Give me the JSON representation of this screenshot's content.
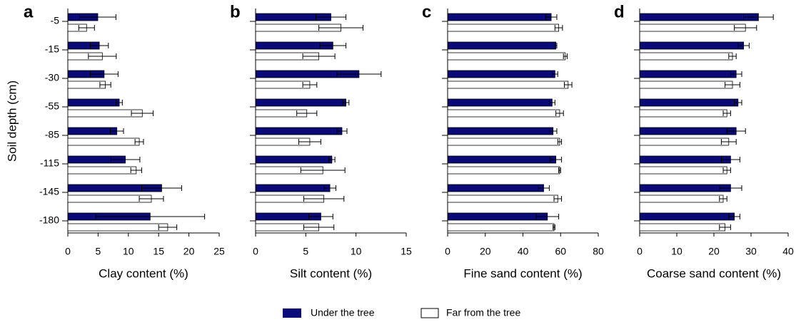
{
  "chart_data": [
    {
      "type": "bar",
      "orientation": "horizontal",
      "title": "a",
      "x_label": "Clay content (%)",
      "y_label": "Soil depth (cm)",
      "categories": [
        "-5",
        "-15",
        "-30",
        "-55",
        "-85",
        "-115",
        "-145",
        "-180"
      ],
      "xlim": [
        0,
        25
      ],
      "xticks": [
        0,
        5,
        10,
        15,
        20,
        25
      ],
      "series": [
        {
          "name": "Under the tree",
          "color": "#0a0a78",
          "values": [
            4.95,
            5.2,
            6.0,
            8.5,
            8.1,
            9.5,
            15.5,
            13.6
          ],
          "errors": [
            3.0,
            1.5,
            2.3,
            0.5,
            1.1,
            2.4,
            3.3,
            9.0
          ]
        },
        {
          "name": "Far from the tree",
          "color": "#ffffff",
          "values": [
            3.1,
            5.7,
            6.2,
            12.3,
            11.8,
            11.3,
            13.8,
            16.5
          ],
          "errors": [
            1.3,
            2.3,
            0.9,
            1.8,
            0.7,
            0.9,
            2.0,
            1.5
          ]
        }
      ]
    },
    {
      "type": "bar",
      "orientation": "horizontal",
      "title": "b",
      "x_label": "Silt content (%)",
      "categories": [
        null,
        null,
        null,
        null,
        null,
        null,
        null,
        null
      ],
      "xlim": [
        0,
        15
      ],
      "xticks": [
        0,
        5,
        10,
        15
      ],
      "series": [
        {
          "color": "#0a0a78",
          "values": [
            7.5,
            7.7,
            10.3,
            9.0,
            8.6,
            7.6,
            7.4,
            6.5
          ],
          "errors": [
            1.5,
            1.3,
            2.2,
            0.3,
            0.5,
            0.3,
            0.6,
            1.2
          ]
        },
        {
          "color": "#ffffff",
          "values": [
            8.5,
            6.3,
            5.4,
            5.1,
            5.4,
            6.7,
            6.8,
            6.3
          ],
          "errors": [
            2.2,
            1.6,
            0.7,
            1.0,
            1.1,
            2.2,
            2.0,
            1.5
          ]
        }
      ]
    },
    {
      "type": "bar",
      "orientation": "horizontal",
      "title": "c",
      "x_label": "Fine sand content (%)",
      "categories": [
        null,
        null,
        null,
        null,
        null,
        null,
        null,
        null
      ],
      "xlim": [
        0,
        80
      ],
      "xticks": [
        0,
        20,
        40,
        60,
        80
      ],
      "series": [
        {
          "color": "#0a0a78",
          "values": [
            55,
            57.5,
            57,
            55.5,
            56,
            57.5,
            51,
            53
          ],
          "errors": [
            3,
            0.5,
            1.5,
            1.5,
            2,
            3,
            3,
            6
          ]
        },
        {
          "color": "#ffffff",
          "values": [
            59,
            62.5,
            64,
            59.5,
            59.5,
            59.5,
            58.5,
            56.5
          ],
          "errors": [
            2,
            1,
            2,
            2,
            1,
            0.5,
            2,
            0.5
          ]
        }
      ]
    },
    {
      "type": "bar",
      "orientation": "horizontal",
      "title": "d",
      "x_label": "Coarse sand content (%)",
      "categories": [
        null,
        null,
        null,
        null,
        null,
        null,
        null,
        null
      ],
      "xlim": [
        0,
        40
      ],
      "xticks": [
        0,
        10,
        20,
        30,
        40
      ],
      "series": [
        {
          "color": "#0a0a78",
          "values": [
            32,
            28,
            26,
            26.5,
            26,
            24.5,
            24.5,
            25.5
          ],
          "errors": [
            4,
            1.5,
            1.5,
            1,
            2.5,
            2.5,
            3,
            1.5
          ]
        },
        {
          "color": "#ffffff",
          "values": [
            28.5,
            25,
            25,
            23.5,
            24,
            23.5,
            22.5,
            23
          ],
          "errors": [
            3,
            1,
            2,
            1,
            2,
            1,
            1,
            1.5
          ]
        }
      ]
    }
  ]
}
